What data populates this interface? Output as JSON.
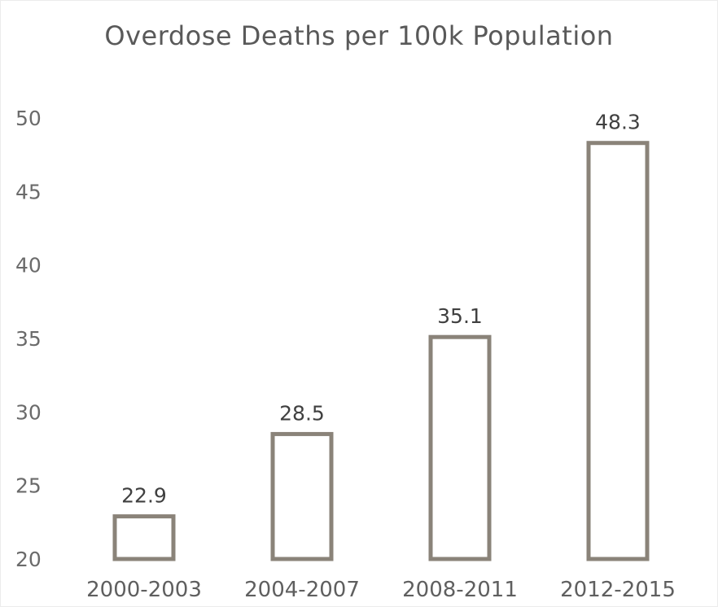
{
  "chart_data": {
    "type": "bar",
    "title": "Overdose Deaths per 100k Population",
    "xlabel": "",
    "ylabel": "",
    "categories": [
      "2000-2003",
      "2004-2007",
      "2008-2011",
      "2012-2015"
    ],
    "values": [
      22.9,
      28.5,
      35.1,
      48.3
    ],
    "data_labels": [
      "22.9",
      "28.5",
      "35.1",
      "48.3"
    ],
    "ylim": [
      20,
      50
    ],
    "yticks": [
      20,
      25,
      30,
      35,
      40,
      45,
      50
    ],
    "grid": false,
    "legend": "none",
    "colors": {
      "bar_outline": "#8a8379",
      "bar_fill": "#ffffff",
      "text": "#595959"
    }
  }
}
